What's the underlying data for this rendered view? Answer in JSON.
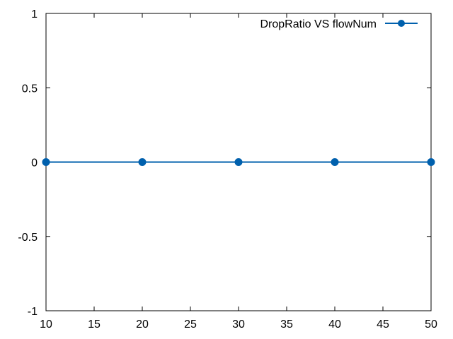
{
  "chart_data": {
    "type": "line",
    "title": "",
    "xlabel": "",
    "ylabel": "",
    "x": [
      10,
      20,
      30,
      40,
      50
    ],
    "series": [
      {
        "name": "DropRatio VS flowNum",
        "values": [
          0,
          0,
          0,
          0,
          0
        ],
        "color": "#0060ad",
        "marker": "circle"
      }
    ],
    "xlim": [
      10,
      50
    ],
    "ylim": [
      -1,
      1
    ],
    "xticks": [
      10,
      15,
      20,
      25,
      30,
      35,
      40,
      45,
      50
    ],
    "xtick_labels": [
      "10",
      "15",
      "20",
      "25",
      "30",
      "35",
      "40",
      "45",
      "50"
    ],
    "yticks": [
      -1,
      -0.5,
      0,
      0.5,
      1
    ],
    "ytick_labels": [
      "-1",
      "-0.5",
      "0",
      "0.5",
      "1"
    ],
    "grid": false,
    "legend_position": "top-right"
  }
}
